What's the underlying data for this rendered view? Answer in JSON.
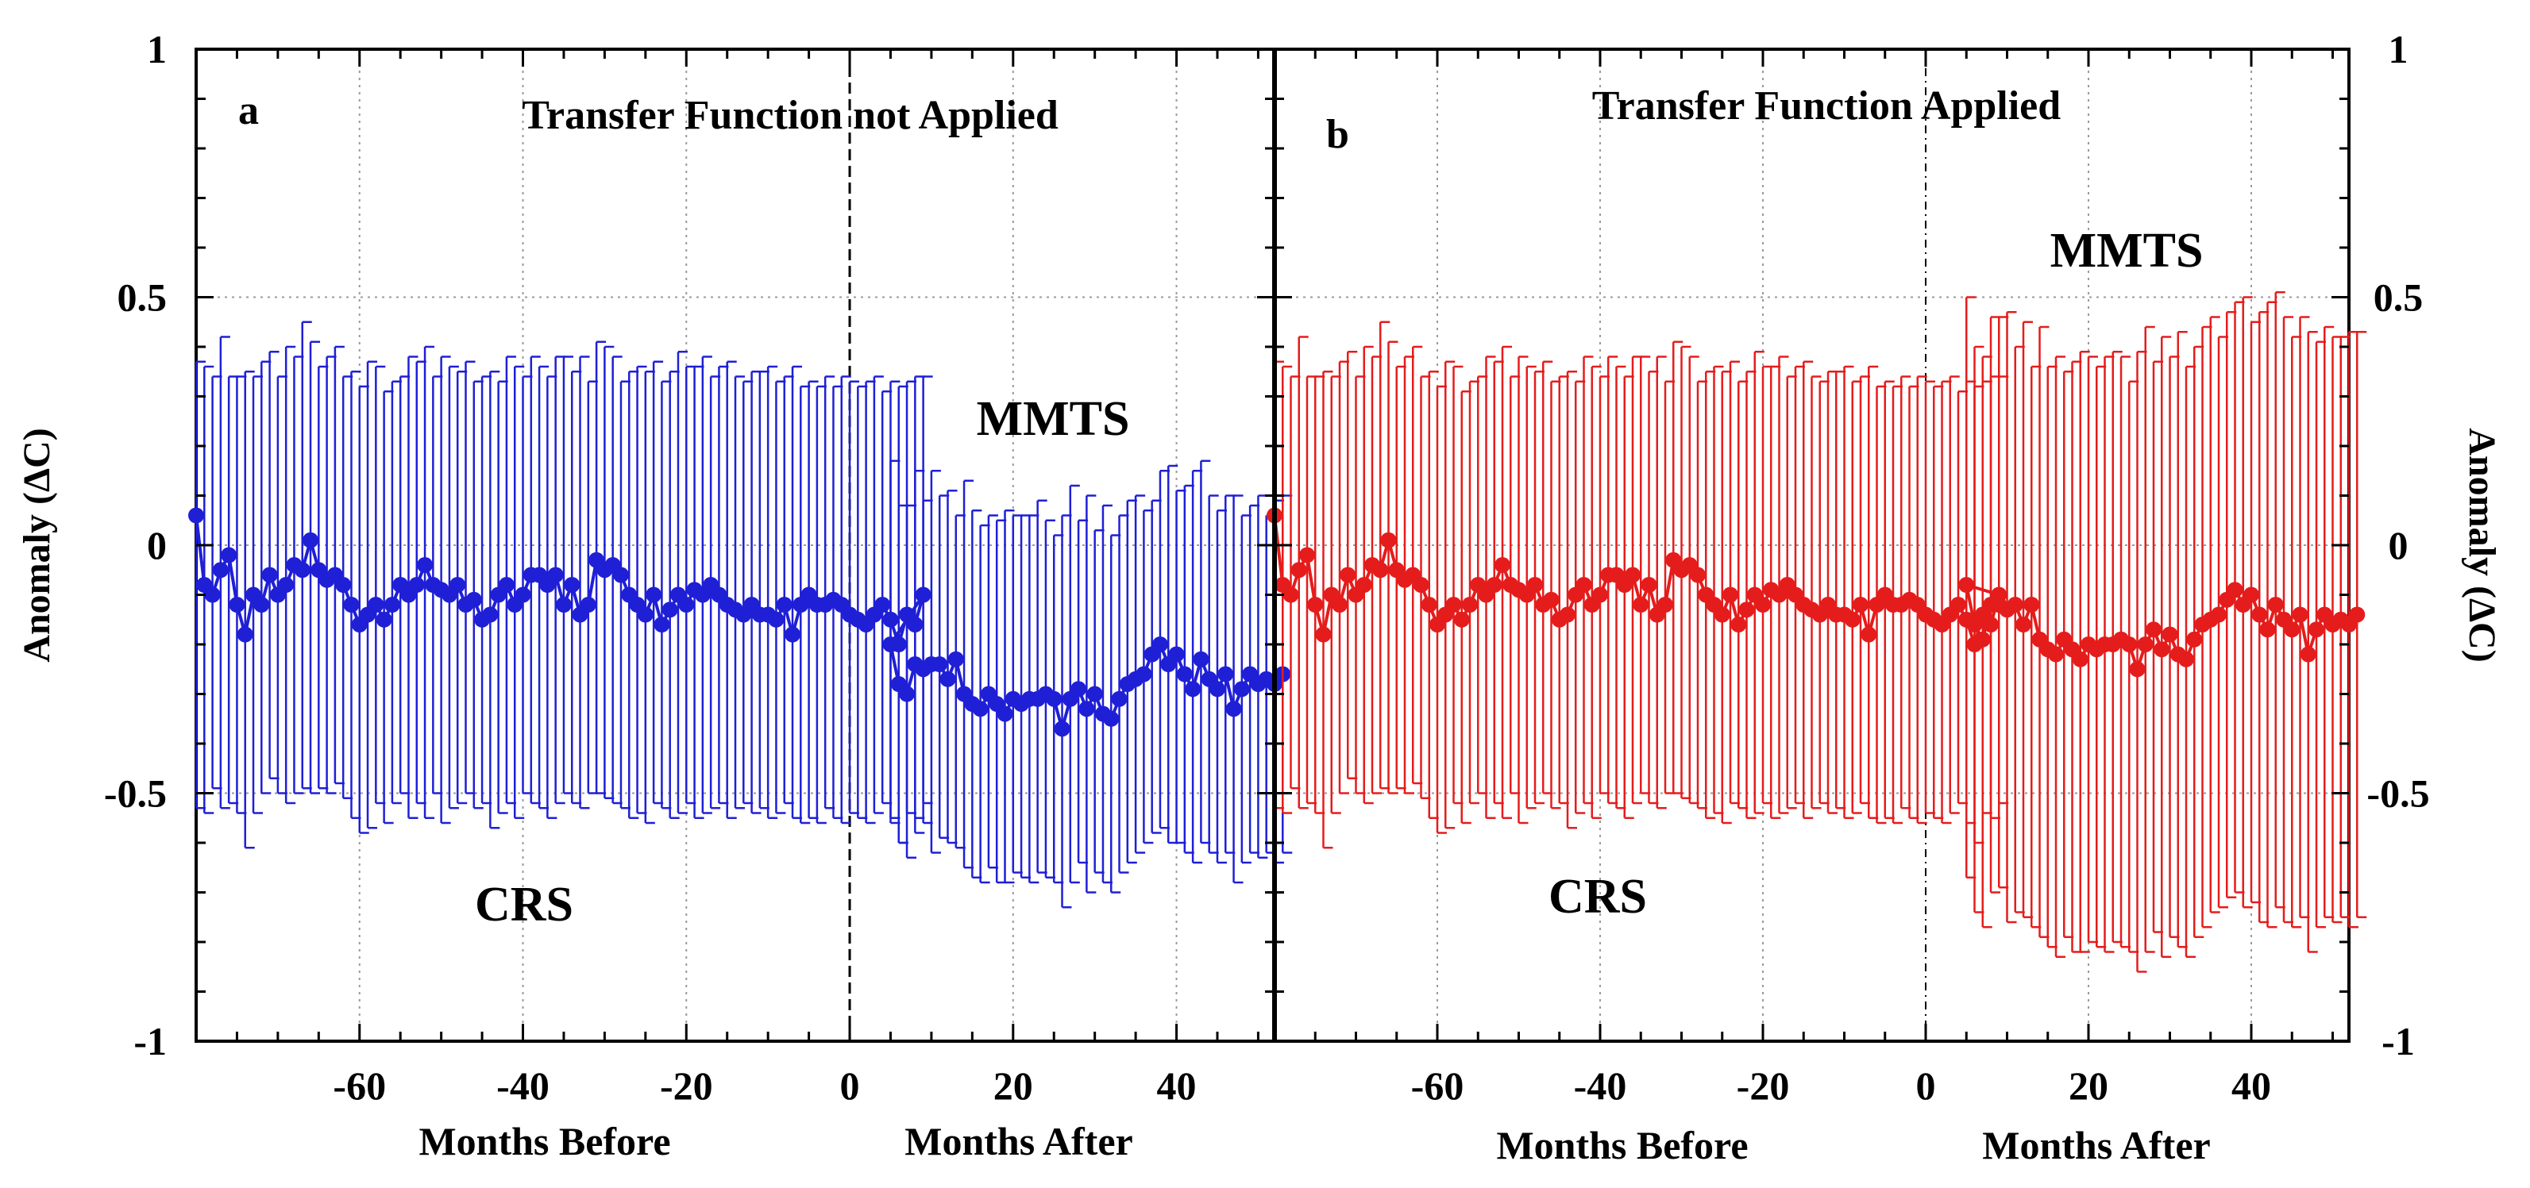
{
  "chart_data": {
    "type": "line",
    "figure_ylabel": "Anomaly (ΔC)",
    "ylim": [
      -1,
      1
    ],
    "yticks": [
      1,
      0.5,
      0,
      -0.5,
      -1
    ],
    "ytick_labels": [
      "1",
      "0.5",
      "0",
      "-0.5",
      "-1"
    ],
    "xlim": [
      -80,
      52
    ],
    "xticks": [
      -60,
      -40,
      -20,
      0,
      20,
      40
    ],
    "xtick_labels": [
      "-60",
      "-40",
      "-20",
      "0",
      "20",
      "40"
    ],
    "xlabel_before": "Months Before",
    "xlabel_after": "Months After",
    "grid": true,
    "panels": [
      {
        "letter": "a",
        "title": "Transfer Function not Applied",
        "color": "#1f1fd6",
        "label_before": "CRS",
        "label_after": "MMTS",
        "errorbars": true,
        "points_per_month": 1,
        "before": {
          "x_start": -80,
          "x_step": 1,
          "values": [
            0.06,
            -0.08,
            -0.1,
            -0.05,
            -0.02,
            -0.12,
            -0.18,
            -0.1,
            -0.12,
            -0.06,
            -0.1,
            -0.08,
            -0.04,
            -0.05,
            0.01,
            -0.05,
            -0.07,
            -0.06,
            -0.08,
            -0.12,
            -0.16,
            -0.14,
            -0.12,
            -0.15,
            -0.12,
            -0.08,
            -0.1,
            -0.08,
            -0.04,
            -0.08,
            -0.09,
            -0.1,
            -0.08,
            -0.12,
            -0.11,
            -0.15,
            -0.14,
            -0.1,
            -0.08,
            -0.12,
            -0.1,
            -0.06,
            -0.06,
            -0.08,
            -0.06,
            -0.12,
            -0.08,
            -0.14,
            -0.12,
            -0.03,
            -0.05,
            -0.04,
            -0.06,
            -0.1,
            -0.12,
            -0.14,
            -0.1,
            -0.16,
            -0.13,
            -0.1,
            -0.12,
            -0.09,
            -0.1,
            -0.08,
            -0.1,
            -0.12,
            -0.13,
            -0.14,
            -0.12,
            -0.14,
            -0.14,
            -0.15,
            -0.12,
            -0.18,
            -0.12,
            -0.1,
            -0.12,
            -0.12,
            -0.11,
            -0.12,
            -0.14,
            -0.15,
            -0.16,
            -0.14,
            -0.12,
            -0.15,
            -0.2,
            -0.14,
            -0.16,
            -0.1
          ],
          "err_upper": [
            0.37,
            0.36,
            0.34,
            0.42,
            0.34,
            0.34,
            0.35,
            0.34,
            0.37,
            0.39,
            0.34,
            0.4,
            0.38,
            0.45,
            0.41,
            0.36,
            0.38,
            0.4,
            0.34,
            0.35,
            0.32,
            0.37,
            0.36,
            0.31,
            0.33,
            0.34,
            0.38,
            0.37,
            0.4,
            0.34,
            0.38,
            0.36,
            0.35,
            0.37,
            0.33,
            0.34,
            0.35,
            0.33,
            0.38,
            0.36,
            0.34,
            0.38,
            0.36,
            0.34,
            0.38,
            0.38,
            0.35,
            0.38,
            0.33,
            0.41,
            0.4,
            0.38,
            0.33,
            0.35,
            0.36,
            0.35,
            0.37,
            0.33,
            0.35,
            0.39,
            0.36,
            0.36,
            0.38,
            0.34,
            0.36,
            0.37,
            0.34,
            0.33,
            0.35,
            0.35,
            0.36,
            0.33,
            0.34,
            0.36,
            0.32,
            0.33,
            0.32,
            0.34,
            0.32,
            0.34,
            0.33,
            0.32,
            0.33,
            0.34,
            0.31,
            0.33,
            0.32,
            0.33,
            0.34,
            0.34
          ],
          "err_lower": [
            -0.53,
            -0.54,
            -0.49,
            -0.53,
            -0.52,
            -0.54,
            -0.61,
            -0.54,
            -0.5,
            -0.47,
            -0.5,
            -0.52,
            -0.5,
            -0.49,
            -0.5,
            -0.49,
            -0.5,
            -0.48,
            -0.51,
            -0.55,
            -0.58,
            -0.57,
            -0.52,
            -0.56,
            -0.52,
            -0.5,
            -0.55,
            -0.52,
            -0.55,
            -0.5,
            -0.56,
            -0.53,
            -0.52,
            -0.5,
            -0.53,
            -0.52,
            -0.57,
            -0.54,
            -0.52,
            -0.55,
            -0.5,
            -0.52,
            -0.53,
            -0.55,
            -0.52,
            -0.5,
            -0.52,
            -0.53,
            -0.5,
            -0.5,
            -0.51,
            -0.52,
            -0.53,
            -0.55,
            -0.54,
            -0.56,
            -0.52,
            -0.53,
            -0.55,
            -0.54,
            -0.52,
            -0.55,
            -0.54,
            -0.53,
            -0.52,
            -0.55,
            -0.53,
            -0.52,
            -0.54,
            -0.53,
            -0.55,
            -0.54,
            -0.52,
            -0.55,
            -0.56,
            -0.55,
            -0.56,
            -0.53,
            -0.55,
            -0.56,
            -0.54,
            -0.55,
            -0.56,
            -0.54,
            -0.52,
            -0.56,
            -0.6,
            -0.54,
            -0.55,
            -0.52
          ]
        },
        "after": {
          "x_start": 5,
          "x_step": 1,
          "values": [
            -0.2,
            -0.28,
            -0.3,
            -0.24,
            -0.25,
            -0.24,
            -0.24,
            -0.27,
            -0.23,
            -0.3,
            -0.32,
            -0.33,
            -0.3,
            -0.32,
            -0.34,
            -0.31,
            -0.32,
            -0.31,
            -0.31,
            -0.3,
            -0.31,
            -0.37,
            -0.31,
            -0.29,
            -0.33,
            -0.3,
            -0.34,
            -0.35,
            -0.31,
            -0.28,
            -0.27,
            -0.26,
            -0.22,
            -0.2,
            -0.24,
            -0.22,
            -0.26,
            -0.29,
            -0.23,
            -0.27,
            -0.29,
            -0.26,
            -0.33,
            -0.29,
            -0.26,
            -0.28,
            -0.27,
            -0.28,
            -0.26
          ],
          "err_upper": [
            0.17,
            0.08,
            0.08,
            0.15,
            0.09,
            0.15,
            0.1,
            0.11,
            0.06,
            0.13,
            0.07,
            0.04,
            0.06,
            0.05,
            0.07,
            0.06,
            0.06,
            0.06,
            0.09,
            0.05,
            0.02,
            0.06,
            0.12,
            0.05,
            0.1,
            0.03,
            0.08,
            0.02,
            0.06,
            0.09,
            0.1,
            0.07,
            0.09,
            0.15,
            0.16,
            0.11,
            0.12,
            0.15,
            0.17,
            0.1,
            0.07,
            0.1,
            0.1,
            0.06,
            0.08,
            0.1,
            0.06,
            0.09,
            0.1
          ],
          "err_lower": [
            -0.55,
            -0.6,
            -0.63,
            -0.58,
            -0.56,
            -0.62,
            -0.59,
            -0.6,
            -0.61,
            -0.65,
            -0.67,
            -0.68,
            -0.65,
            -0.68,
            -0.68,
            -0.66,
            -0.67,
            -0.68,
            -0.66,
            -0.67,
            -0.68,
            -0.73,
            -0.68,
            -0.64,
            -0.7,
            -0.66,
            -0.68,
            -0.7,
            -0.66,
            -0.64,
            -0.62,
            -0.6,
            -0.58,
            -0.57,
            -0.6,
            -0.6,
            -0.62,
            -0.64,
            -0.6,
            -0.62,
            -0.64,
            -0.62,
            -0.68,
            -0.64,
            -0.62,
            -0.63,
            -0.62,
            -0.64,
            -0.62
          ]
        }
      },
      {
        "letter": "b",
        "title": "Transfer Function Applied",
        "color": "#e51c1c",
        "label_before": "CRS",
        "label_after": "MMTS",
        "errorbars": true,
        "points_per_month": 1,
        "before": {
          "x_start": -80,
          "x_step": 1,
          "values": [
            0.06,
            -0.08,
            -0.1,
            -0.05,
            -0.02,
            -0.12,
            -0.18,
            -0.1,
            -0.12,
            -0.06,
            -0.1,
            -0.08,
            -0.04,
            -0.05,
            0.01,
            -0.05,
            -0.07,
            -0.06,
            -0.08,
            -0.12,
            -0.16,
            -0.14,
            -0.12,
            -0.15,
            -0.12,
            -0.08,
            -0.1,
            -0.08,
            -0.04,
            -0.08,
            -0.09,
            -0.1,
            -0.08,
            -0.12,
            -0.11,
            -0.15,
            -0.14,
            -0.1,
            -0.08,
            -0.12,
            -0.1,
            -0.06,
            -0.06,
            -0.08,
            -0.06,
            -0.12,
            -0.08,
            -0.14,
            -0.12,
            -0.03,
            -0.05,
            -0.04,
            -0.06,
            -0.1,
            -0.12,
            -0.14,
            -0.1,
            -0.16,
            -0.13,
            -0.1,
            -0.12,
            -0.09,
            -0.1,
            -0.08,
            -0.1,
            -0.12,
            -0.13,
            -0.14,
            -0.12,
            -0.14,
            -0.14,
            -0.15,
            -0.12,
            -0.18,
            -0.12,
            -0.1,
            -0.12,
            -0.12,
            -0.11,
            -0.12,
            -0.14,
            -0.15,
            -0.16,
            -0.14,
            -0.12,
            -0.15,
            -0.2,
            -0.14,
            -0.16,
            -0.1
          ],
          "err_upper": [
            0.37,
            0.36,
            0.34,
            0.42,
            0.34,
            0.34,
            0.35,
            0.34,
            0.37,
            0.39,
            0.34,
            0.4,
            0.38,
            0.45,
            0.41,
            0.36,
            0.38,
            0.4,
            0.34,
            0.35,
            0.32,
            0.37,
            0.36,
            0.31,
            0.33,
            0.34,
            0.38,
            0.37,
            0.4,
            0.34,
            0.38,
            0.36,
            0.35,
            0.37,
            0.33,
            0.34,
            0.35,
            0.33,
            0.38,
            0.36,
            0.34,
            0.38,
            0.36,
            0.34,
            0.38,
            0.38,
            0.35,
            0.38,
            0.33,
            0.41,
            0.4,
            0.38,
            0.33,
            0.35,
            0.36,
            0.35,
            0.37,
            0.33,
            0.35,
            0.39,
            0.36,
            0.36,
            0.38,
            0.34,
            0.36,
            0.37,
            0.34,
            0.33,
            0.35,
            0.35,
            0.36,
            0.33,
            0.34,
            0.36,
            0.32,
            0.33,
            0.32,
            0.34,
            0.32,
            0.34,
            0.33,
            0.32,
            0.33,
            0.34,
            0.31,
            0.33,
            0.32,
            0.33,
            0.34,
            0.34
          ],
          "err_lower": [
            -0.53,
            -0.54,
            -0.49,
            -0.53,
            -0.52,
            -0.54,
            -0.61,
            -0.54,
            -0.5,
            -0.47,
            -0.5,
            -0.52,
            -0.5,
            -0.49,
            -0.5,
            -0.49,
            -0.5,
            -0.48,
            -0.51,
            -0.55,
            -0.58,
            -0.57,
            -0.52,
            -0.56,
            -0.52,
            -0.5,
            -0.55,
            -0.52,
            -0.55,
            -0.5,
            -0.56,
            -0.53,
            -0.52,
            -0.5,
            -0.53,
            -0.52,
            -0.57,
            -0.54,
            -0.52,
            -0.55,
            -0.5,
            -0.52,
            -0.53,
            -0.55,
            -0.52,
            -0.5,
            -0.52,
            -0.53,
            -0.5,
            -0.5,
            -0.51,
            -0.52,
            -0.53,
            -0.55,
            -0.54,
            -0.56,
            -0.52,
            -0.53,
            -0.55,
            -0.54,
            -0.52,
            -0.55,
            -0.54,
            -0.53,
            -0.52,
            -0.55,
            -0.53,
            -0.52,
            -0.54,
            -0.53,
            -0.55,
            -0.54,
            -0.52,
            -0.55,
            -0.56,
            -0.55,
            -0.56,
            -0.53,
            -0.55,
            -0.56,
            -0.54,
            -0.55,
            -0.56,
            -0.54,
            -0.52,
            -0.56,
            -0.6,
            -0.54,
            -0.55,
            -0.52
          ]
        },
        "after": {
          "x_start": 5,
          "x_step": 1,
          "values": [
            -0.08,
            -0.16,
            -0.19,
            -0.12,
            -0.12,
            -0.13,
            -0.12,
            -0.16,
            -0.12,
            -0.19,
            -0.21,
            -0.22,
            -0.19,
            -0.21,
            -0.23,
            -0.2,
            -0.21,
            -0.2,
            -0.2,
            -0.19,
            -0.2,
            -0.25,
            -0.2,
            -0.17,
            -0.21,
            -0.18,
            -0.22,
            -0.23,
            -0.19,
            -0.16,
            -0.15,
            -0.14,
            -0.11,
            -0.09,
            -0.12,
            -0.1,
            -0.14,
            -0.17,
            -0.12,
            -0.15,
            -0.17,
            -0.14,
            -0.22,
            -0.17,
            -0.14,
            -0.16,
            -0.15,
            -0.16,
            -0.14
          ],
          "err_upper": [
            0.5,
            0.4,
            0.38,
            0.46,
            0.46,
            0.47,
            0.4,
            0.45,
            0.36,
            0.44,
            0.36,
            0.38,
            0.35,
            0.37,
            0.39,
            0.38,
            0.36,
            0.38,
            0.39,
            0.38,
            0.33,
            0.39,
            0.44,
            0.37,
            0.42,
            0.38,
            0.43,
            0.36,
            0.4,
            0.44,
            0.46,
            0.42,
            0.47,
            0.49,
            0.5,
            0.45,
            0.47,
            0.49,
            0.51,
            0.46,
            0.42,
            0.46,
            0.43,
            0.41,
            0.44,
            0.42,
            0.42,
            0.43,
            0.43
          ],
          "err_lower": [
            -0.67,
            -0.74,
            -0.77,
            -0.7,
            -0.69,
            -0.76,
            -0.74,
            -0.75,
            -0.77,
            -0.79,
            -0.81,
            -0.83,
            -0.79,
            -0.82,
            -0.82,
            -0.8,
            -0.81,
            -0.82,
            -0.8,
            -0.81,
            -0.82,
            -0.86,
            -0.82,
            -0.78,
            -0.83,
            -0.79,
            -0.81,
            -0.83,
            -0.79,
            -0.77,
            -0.74,
            -0.73,
            -0.71,
            -0.7,
            -0.73,
            -0.72,
            -0.76,
            -0.77,
            -0.73,
            -0.76,
            -0.77,
            -0.75,
            -0.82,
            -0.77,
            -0.75,
            -0.76,
            -0.75,
            -0.77,
            -0.75
          ]
        }
      }
    ]
  }
}
